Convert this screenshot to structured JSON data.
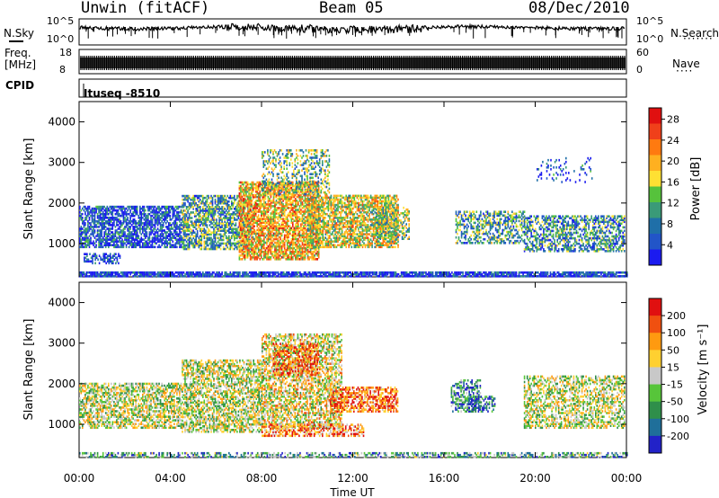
{
  "header": {
    "station": "Unwin (fitACF)",
    "beam": "Beam 05",
    "date": "08/Dec/2010"
  },
  "top_panels": {
    "nsky_label": "N.Sky",
    "nsearch_label": "N.Search",
    "nsky_ticks": [
      "10^5",
      "10^0"
    ],
    "nsearch_ticks": [
      "10^5",
      "10^0"
    ],
    "freq_label": "Freq.",
    "freq_units": "[MHz]",
    "freq_ticks": [
      "18",
      "8"
    ],
    "nave_label": "Nave",
    "nave_ticks": [
      "60",
      "0"
    ],
    "cpid_label": "CPID",
    "cpid_value": "Ituseq -8510"
  },
  "chart_data": [
    {
      "type": "heatmap",
      "ylabel": "Slant Range [km]",
      "yticks": [
        1000,
        2000,
        3000,
        4000
      ],
      "ylim": [
        180,
        4500
      ],
      "xlim": [
        0,
        24
      ],
      "colorbar": {
        "label": "Power [dB]",
        "ticks": [
          "4",
          "8",
          "12",
          "16",
          "20",
          "24",
          "28"
        ],
        "colors": [
          "#1b1bf0",
          "#2255c8",
          "#1f6fa8",
          "#3a9a78",
          "#56c23c",
          "#ffe033",
          "#ffb020",
          "#ff7a10",
          "#f0401a",
          "#e01010"
        ]
      },
      "regions": [
        {
          "t0": 0.0,
          "t1": 24.0,
          "r0": 180,
          "r1": 290,
          "density": 0.85,
          "level": 0.1
        },
        {
          "t0": 0.0,
          "t1": 4.5,
          "r0": 900,
          "r1": 1900,
          "density": 0.7,
          "level": 0.15
        },
        {
          "t0": 0.2,
          "t1": 1.8,
          "r0": 500,
          "r1": 750,
          "density": 0.5,
          "level": 0.1
        },
        {
          "t0": 4.5,
          "t1": 7.5,
          "r0": 850,
          "r1": 2200,
          "density": 0.65,
          "level": 0.35
        },
        {
          "t0": 7.0,
          "t1": 10.5,
          "r0": 600,
          "r1": 2500,
          "density": 0.75,
          "level": 0.65
        },
        {
          "t0": 8.0,
          "t1": 11.0,
          "r0": 2200,
          "r1": 3300,
          "density": 0.35,
          "level": 0.4
        },
        {
          "t0": 10.0,
          "t1": 14.0,
          "r0": 900,
          "r1": 2200,
          "density": 0.7,
          "level": 0.55
        },
        {
          "t0": 13.0,
          "t1": 14.5,
          "r0": 1100,
          "r1": 1900,
          "density": 0.5,
          "level": 0.45
        },
        {
          "t0": 16.5,
          "t1": 19.5,
          "r0": 1000,
          "r1": 1800,
          "density": 0.5,
          "level": 0.35
        },
        {
          "t0": 19.5,
          "t1": 23.9,
          "r0": 800,
          "r1": 1700,
          "density": 0.55,
          "level": 0.3
        },
        {
          "t0": 20.0,
          "t1": 22.5,
          "r0": 2500,
          "r1": 3100,
          "density": 0.12,
          "level": 0.15
        }
      ]
    },
    {
      "type": "heatmap",
      "ylabel": "Slant Range [km]",
      "xlabel": "Time UT",
      "yticks": [
        1000,
        2000,
        3000,
        4000
      ],
      "ylim": [
        180,
        4500
      ],
      "xlim": [
        0,
        24
      ],
      "xticks": [
        "00:00",
        "04:00",
        "08:00",
        "12:00",
        "16:00",
        "20:00",
        "00:00"
      ],
      "colorbar": {
        "label": "Velocity [m s⁻¹]",
        "ticks": [
          "200",
          "100",
          "50",
          "15",
          "-15",
          "-50",
          "-100",
          "-200"
        ],
        "colors": [
          "#2222c8",
          "#1f6f9a",
          "#2f8f4a",
          "#57c53a",
          "#c8c8c8",
          "#ffd030",
          "#ff9a10",
          "#f05010",
          "#e01010"
        ]
      },
      "regions": [
        {
          "t0": 0.0,
          "t1": 24.0,
          "r0": 180,
          "r1": 300,
          "density": 0.5,
          "level": 0.3
        },
        {
          "t0": 0.0,
          "t1": 4.5,
          "r0": 900,
          "r1": 2000,
          "density": 0.6,
          "level": 0.5
        },
        {
          "t0": 4.5,
          "t1": 8.0,
          "r0": 800,
          "r1": 2600,
          "density": 0.6,
          "level": 0.5
        },
        {
          "t0": 8.0,
          "t1": 11.5,
          "r0": 900,
          "r1": 3200,
          "density": 0.6,
          "level": 0.55
        },
        {
          "t0": 8.5,
          "t1": 10.5,
          "r0": 2200,
          "r1": 3000,
          "density": 0.4,
          "level": 0.85
        },
        {
          "t0": 8.0,
          "t1": 12.5,
          "r0": 700,
          "r1": 1000,
          "density": 0.55,
          "level": 0.75
        },
        {
          "t0": 11.0,
          "t1": 14.0,
          "r0": 1300,
          "r1": 1900,
          "density": 0.6,
          "level": 0.8
        },
        {
          "t0": 16.3,
          "t1": 17.6,
          "r0": 1300,
          "r1": 2100,
          "density": 0.55,
          "level": 0.25
        },
        {
          "t0": 17.0,
          "t1": 18.2,
          "r0": 1300,
          "r1": 1700,
          "density": 0.5,
          "level": 0.15
        },
        {
          "t0": 19.5,
          "t1": 23.9,
          "r0": 900,
          "r1": 2200,
          "density": 0.5,
          "level": 0.5
        }
      ]
    }
  ]
}
